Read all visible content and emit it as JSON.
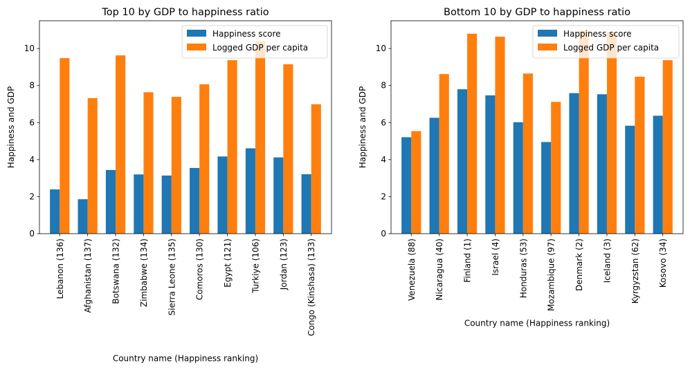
{
  "chart_data": [
    {
      "type": "bar",
      "title": "Top 10 by GDP to happiness ratio",
      "xlabel": "Country name (Happiness ranking)",
      "ylabel": "Happiness and GDP",
      "ylim": [
        0,
        11.5
      ],
      "yticks": [
        0,
        2,
        4,
        6,
        8,
        10
      ],
      "legend_position": "top-right",
      "categories": [
        "Lebanon (136)",
        "Afghanistan (137)",
        "Botswana (132)",
        "Zimbabwe (134)",
        "Sierra Leone (135)",
        "Comoros (130)",
        "Egypt (121)",
        "Turkiye (106)",
        "Jordan (123)",
        "Congo (Kinshasa) (133)"
      ],
      "series": [
        {
          "name": "Happiness score",
          "color": "#1f77b4",
          "values": [
            2.39,
            1.86,
            3.44,
            3.2,
            3.14,
            3.55,
            4.17,
            4.61,
            4.12,
            3.21
          ]
        },
        {
          "name": "Logged GDP per capita",
          "color": "#ff7f0e",
          "values": [
            9.48,
            7.32,
            9.63,
            7.64,
            7.39,
            8.07,
            9.37,
            10.4,
            9.15,
            6.99
          ]
        }
      ]
    },
    {
      "type": "bar",
      "title": "Bottom 10 by GDP to happiness ratio",
      "xlabel": "Country name (Happiness ranking)",
      "ylabel": "Happiness and GDP",
      "ylim": [
        0,
        11.5
      ],
      "yticks": [
        0,
        2,
        4,
        6,
        8,
        10
      ],
      "legend_position": "top-right",
      "categories": [
        "Venezuela (88)",
        "Nicaragua (40)",
        "Finland (1)",
        "Israel (4)",
        "Honduras (53)",
        "Mozambique (97)",
        "Denmark (2)",
        "Iceland (3)",
        "Kyrgyzstan (62)",
        "Kosovo (34)"
      ],
      "series": [
        {
          "name": "Happiness score",
          "color": "#1f77b4",
          "values": [
            5.21,
            6.26,
            7.8,
            7.47,
            6.02,
            4.95,
            7.59,
            7.53,
            5.83,
            6.37
          ]
        },
        {
          "name": "Logged GDP per capita",
          "color": "#ff7f0e",
          "values": [
            5.54,
            8.62,
            10.8,
            10.64,
            8.65,
            7.12,
            10.96,
            10.9,
            8.48,
            9.37
          ]
        }
      ]
    }
  ]
}
